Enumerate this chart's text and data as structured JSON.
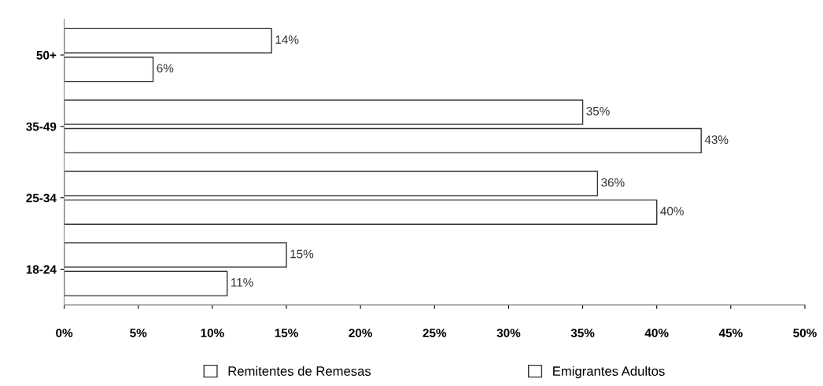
{
  "chart_data": {
    "type": "bar",
    "orientation": "horizontal",
    "categories": [
      "50+",
      "35-49",
      "25-34",
      "18-24"
    ],
    "series": [
      {
        "name": "Remitentes de Remesas",
        "color": "#ffffff",
        "values": [
          14,
          35,
          36,
          15
        ],
        "value_labels": [
          "14%",
          "35%",
          "36%",
          "15%"
        ]
      },
      {
        "name": "Emigrantes Adultos",
        "color": "#ffffff",
        "values": [
          6,
          43,
          40,
          11
        ],
        "value_labels": [
          "6%",
          "43%",
          "40%",
          "11%"
        ]
      }
    ],
    "xlim": [
      0,
      50
    ],
    "xticks": [
      {
        "value": 0,
        "label": "0%"
      },
      {
        "value": 5,
        "label": "5%"
      },
      {
        "value": 10,
        "label": "10%"
      },
      {
        "value": 15,
        "label": "15%"
      },
      {
        "value": 20,
        "label": "20%"
      },
      {
        "value": 25,
        "label": "25%"
      },
      {
        "value": 30,
        "label": "30%"
      },
      {
        "value": 35,
        "label": "35%"
      },
      {
        "value": 40,
        "label": "40%"
      },
      {
        "value": 45,
        "label": "45%"
      },
      {
        "value": 50,
        "label": "50%"
      }
    ],
    "grid": false,
    "legend": "bottom"
  }
}
